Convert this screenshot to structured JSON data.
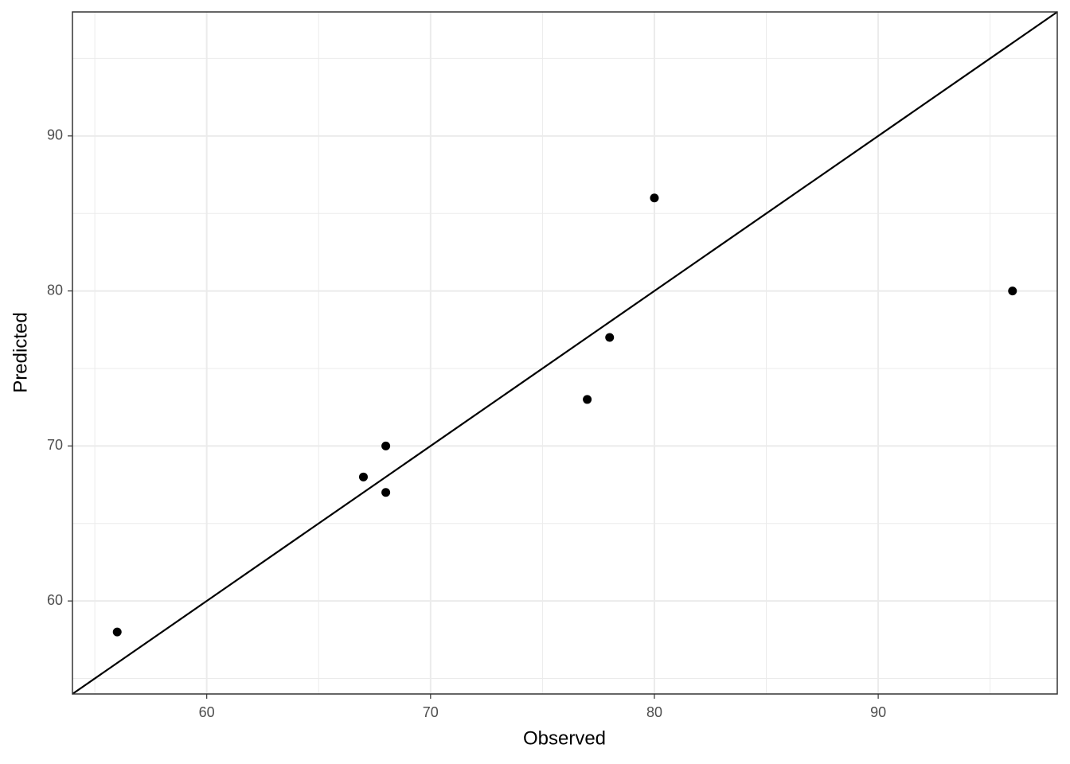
{
  "chart_data": {
    "type": "scatter",
    "x_label": "Observed",
    "y_label": "Predicted",
    "x": [
      56,
      67,
      68,
      68,
      77,
      78,
      80,
      96
    ],
    "values": [
      58,
      68,
      70,
      67,
      73,
      77,
      86,
      80
    ],
    "color": "#000000",
    "xlim": [
      54,
      98
    ],
    "ylim": [
      54,
      98
    ],
    "xticks": [
      60,
      70,
      80,
      90
    ],
    "yticks": [
      60,
      70,
      80,
      90
    ],
    "x_minor_breaks": [
      55,
      65,
      75,
      85,
      95
    ],
    "y_minor_breaks": [
      55,
      65,
      75,
      85,
      95
    ],
    "grid": true,
    "identity_line": true
  }
}
